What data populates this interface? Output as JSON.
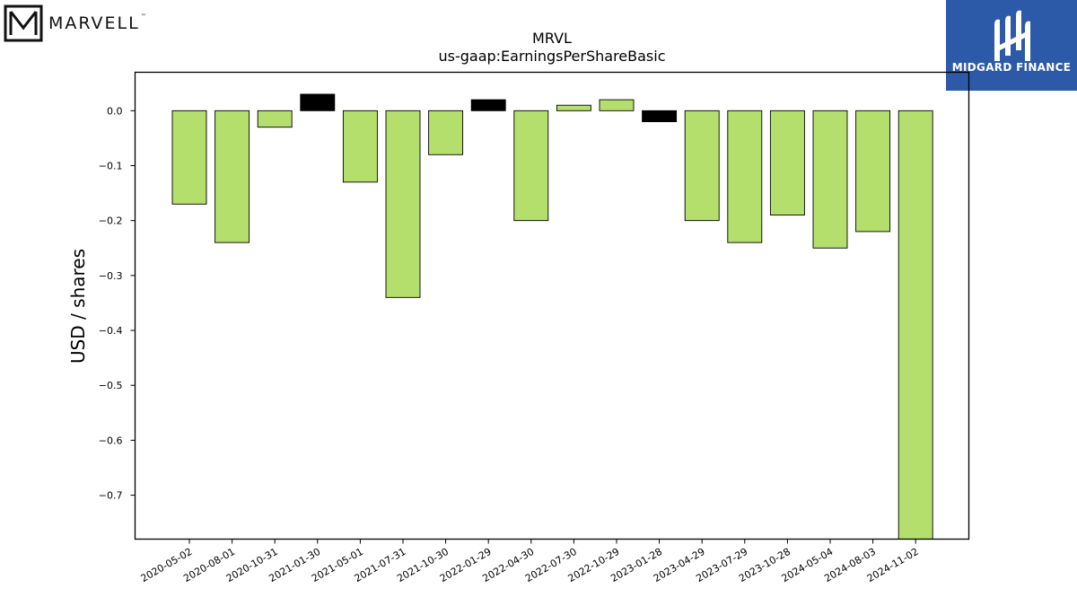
{
  "brand": {
    "left_logo_text": "MARVELL",
    "left_logo_tm": "™",
    "right_logo_text": "MIDGARD FINANCE",
    "right_logo_bg": "#2d5aa8"
  },
  "chart_data": {
    "type": "bar",
    "title": "MRVL",
    "subtitle": "us-gaap:EarningsPerShareBasic",
    "xlabel": "",
    "ylabel": "USD / shares",
    "ylim": [
      -0.78,
      0.07
    ],
    "yticks": [
      0.0,
      -0.1,
      -0.2,
      -0.3,
      -0.4,
      -0.5,
      -0.6,
      -0.7
    ],
    "ytick_labels": [
      "0.0",
      "−0.1",
      "−0.2",
      "−0.3",
      "−0.4",
      "−0.5",
      "−0.6",
      "−0.7"
    ],
    "grid": false,
    "categories": [
      "2020-05-02",
      "2020-08-01",
      "2020-10-31",
      "2021-01-30",
      "2021-05-01",
      "2021-07-31",
      "2021-10-30",
      "2022-01-29",
      "2022-04-30",
      "2022-07-30",
      "2022-10-29",
      "2023-01-28",
      "2023-04-29",
      "2023-07-29",
      "2023-10-28",
      "2024-05-04",
      "2024-08-03",
      "2024-11-02"
    ],
    "values": [
      -0.17,
      -0.24,
      -0.03,
      0.03,
      -0.13,
      -0.34,
      -0.08,
      0.02,
      -0.2,
      0.01,
      0.02,
      -0.02,
      -0.2,
      -0.24,
      -0.19,
      -0.25,
      -0.22,
      -0.78
    ],
    "colors": [
      "#b5df6c",
      "#b5df6c",
      "#b5df6c",
      "#000000",
      "#b5df6c",
      "#b5df6c",
      "#b5df6c",
      "#000000",
      "#b5df6c",
      "#b5df6c",
      "#b5df6c",
      "#000000",
      "#b5df6c",
      "#b5df6c",
      "#b5df6c",
      "#b5df6c",
      "#b5df6c",
      "#b5df6c"
    ],
    "bar_color": "#b5df6c",
    "highlight_color": "#000000"
  }
}
